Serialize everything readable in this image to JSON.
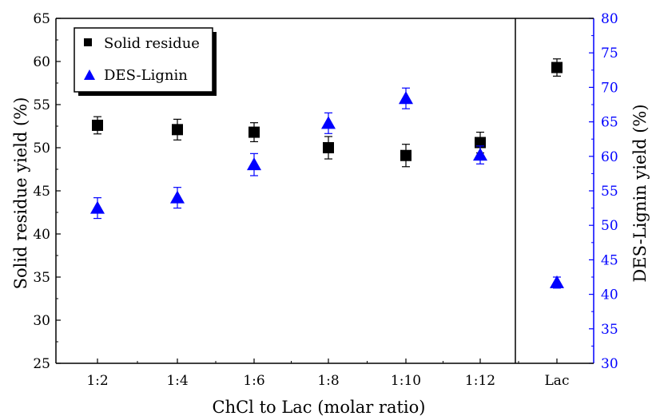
{
  "chart_data": {
    "type": "scatter",
    "title": "",
    "xlabel": "ChCl to Lac (molar ratio)",
    "ylabel": "Solid residue yield (%)",
    "y2label": "DES-Lignin yield (%)",
    "categories": [
      "1:2",
      "1:4",
      "1:6",
      "1:8",
      "1:10",
      "1:12",
      "Lac"
    ],
    "ylim": [
      25,
      65
    ],
    "y2lim": [
      30,
      80
    ],
    "yticks": [
      "25",
      "30",
      "35",
      "40",
      "45",
      "50",
      "55",
      "60",
      "65"
    ],
    "y2ticks": [
      "30",
      "35",
      "40",
      "45",
      "50",
      "55",
      "60",
      "65",
      "70",
      "75",
      "80"
    ],
    "grid": false,
    "legend_position": "top-left",
    "series": [
      {
        "name": "Solid residue",
        "axis": "left",
        "marker": "square",
        "color": "#000000",
        "values": [
          52.6,
          52.1,
          51.8,
          50.0,
          49.1,
          50.6,
          59.3
        ],
        "errors": [
          1.0,
          1.2,
          1.1,
          1.3,
          1.3,
          1.2,
          1.0
        ]
      },
      {
        "name": "DES-Lignin",
        "axis": "right",
        "marker": "triangle",
        "color": "#0000ff",
        "values": [
          52.5,
          54.0,
          58.8,
          64.8,
          68.4,
          60.2,
          41.7
        ],
        "errors": [
          1.5,
          1.5,
          1.6,
          1.5,
          1.5,
          1.3,
          0.8
        ]
      }
    ],
    "colors": {
      "right_axis": "#0000ff",
      "left_axis": "#000000"
    }
  }
}
